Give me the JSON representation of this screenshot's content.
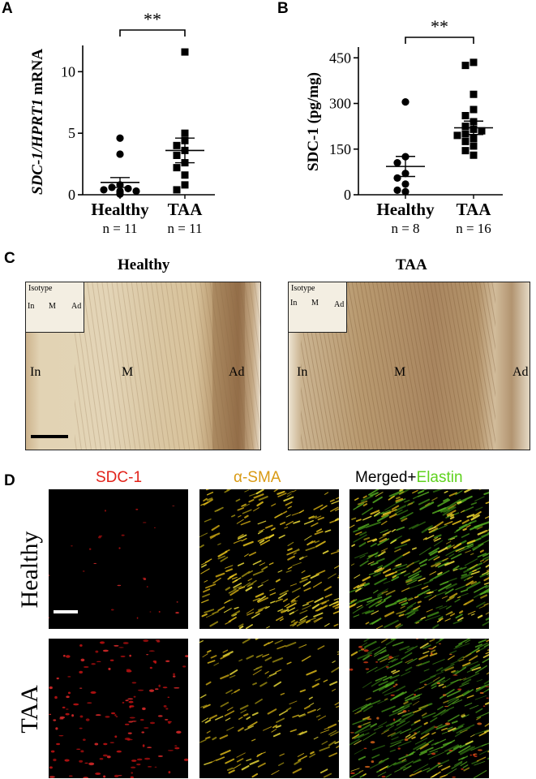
{
  "panels": {
    "a": "A",
    "b": "B",
    "c": "C",
    "d": "D"
  },
  "chart_data": [
    {
      "type": "scatter",
      "panel": "A",
      "ylabel_italic": "SDC-1/HPRT1",
      "ylabel_rest": " mRNA",
      "ylim": [
        0,
        12
      ],
      "yticks": [
        0,
        5,
        10
      ],
      "categories": [
        "Healthy",
        "TAA"
      ],
      "n_labels": [
        "n = 11",
        "n = 11"
      ],
      "significance": "**",
      "series": [
        {
          "values": [
            4.6,
            3.3,
            0.8,
            0.6,
            0.5,
            0.4,
            0.3,
            0.3,
            0.2,
            0.1,
            0.05
          ],
          "mean": 1.0,
          "sem_low": 0.6,
          "sem_high": 1.4,
          "marker": "circle"
        },
        {
          "values": [
            11.6,
            5.0,
            4.4,
            4.0,
            3.6,
            3.2,
            2.6,
            2.2,
            1.6,
            0.8,
            0.4
          ],
          "mean": 3.6,
          "sem_low": 2.6,
          "sem_high": 4.6,
          "marker": "square"
        }
      ]
    },
    {
      "type": "scatter",
      "panel": "B",
      "ylabel": "SDC-1 (pg/mg)",
      "ylim": [
        0,
        480
      ],
      "yticks": [
        0,
        150,
        300,
        450
      ],
      "categories": [
        "Healthy",
        "TAA"
      ],
      "n_labels": [
        "n = 8",
        "n = 16"
      ],
      "significance": "**",
      "series": [
        {
          "values": [
            305,
            125,
            105,
            70,
            55,
            35,
            15,
            10
          ],
          "mean": 93,
          "sem_low": 60,
          "sem_high": 126,
          "marker": "circle"
        },
        {
          "values": [
            435,
            425,
            330,
            280,
            260,
            240,
            225,
            215,
            210,
            200,
            195,
            185,
            175,
            160,
            145,
            130
          ],
          "mean": 220,
          "sem_low": 198,
          "sem_high": 242,
          "marker": "square"
        }
      ]
    }
  ],
  "panel_c": {
    "titles": [
      "Healthy",
      "TAA"
    ],
    "inset_label": "Isotype",
    "layers": [
      "In",
      "M",
      "Ad"
    ]
  },
  "panel_d": {
    "columns": {
      "sdc1": "SDC-1",
      "asma": "α-SMA",
      "merged": "Merged+",
      "elastin": "Elastin"
    },
    "rows": [
      "Healthy",
      "TAA"
    ],
    "colors": {
      "sdc1": "#e2231a",
      "asma": "#d99a14",
      "elastin": "#5fd21e"
    }
  }
}
